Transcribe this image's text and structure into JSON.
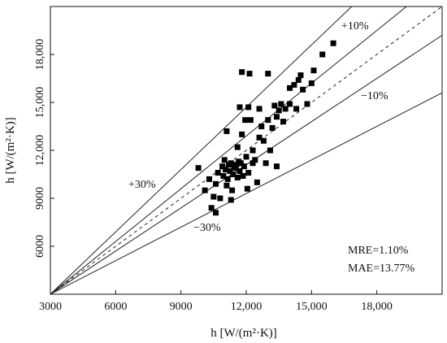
{
  "chart_data": {
    "type": "scatter",
    "xlabel": "h [W/(m²·K)]",
    "ylabel": "h [W/(m²·K)]",
    "xlim": [
      3000,
      21000
    ],
    "ylim": [
      3000,
      21000
    ],
    "x_ticks": [
      3000,
      6000,
      9000,
      12000,
      15000,
      18000
    ],
    "x_tick_labels": [
      "3000",
      "6000",
      "9000",
      "12,000",
      "15,000",
      "18,000"
    ],
    "y_ticks": [
      6000,
      9000,
      12000,
      15000,
      18000
    ],
    "y_tick_labels": [
      "6000",
      "9000",
      "12,000",
      "15,000",
      "18,000"
    ],
    "grid": false,
    "reference_lines": [
      {
        "label": "",
        "slope": 1.0,
        "style": "dashed"
      },
      {
        "label": "+10%",
        "slope": 1.1,
        "style": "solid"
      },
      {
        "label": "−10%",
        "slope": 0.9,
        "style": "solid"
      },
      {
        "label": "+30%",
        "slope": 1.3,
        "style": "solid"
      },
      {
        "label": "−30%",
        "slope": 0.7,
        "style": "solid"
      }
    ],
    "annotations": [
      "MRE=1.10%",
      "MAE=13.77%"
    ],
    "points": [
      [
        9800,
        10900
      ],
      [
        10100,
        9500
      ],
      [
        10300,
        10200
      ],
      [
        10400,
        8400
      ],
      [
        10500,
        9100
      ],
      [
        10600,
        8100
      ],
      [
        10600,
        9900
      ],
      [
        10700,
        10600
      ],
      [
        10800,
        9000
      ],
      [
        10900,
        11000
      ],
      [
        10950,
        10400
      ],
      [
        11000,
        11400
      ],
      [
        11050,
        10800
      ],
      [
        11100,
        9800
      ],
      [
        11100,
        13200
      ],
      [
        11150,
        10200
      ],
      [
        11200,
        11100
      ],
      [
        11250,
        10700
      ],
      [
        11300,
        8900
      ],
      [
        11300,
        11200
      ],
      [
        11350,
        9500
      ],
      [
        11400,
        10500
      ],
      [
        11450,
        11000
      ],
      [
        11500,
        10900
      ],
      [
        11550,
        11100
      ],
      [
        11600,
        10300
      ],
      [
        11600,
        12200
      ],
      [
        11650,
        11300
      ],
      [
        11700,
        10700
      ],
      [
        11700,
        14700
      ],
      [
        11750,
        11200
      ],
      [
        11800,
        13000
      ],
      [
        11800,
        16900
      ],
      [
        11850,
        10400
      ],
      [
        11900,
        11000
      ],
      [
        11950,
        13900
      ],
      [
        12000,
        11600
      ],
      [
        12050,
        9600
      ],
      [
        12100,
        10600
      ],
      [
        12100,
        14700
      ],
      [
        12150,
        16800
      ],
      [
        12200,
        13900
      ],
      [
        12300,
        11200
      ],
      [
        12300,
        12000
      ],
      [
        12400,
        11400
      ],
      [
        12500,
        10000
      ],
      [
        12600,
        12800
      ],
      [
        12600,
        14600
      ],
      [
        12700,
        13500
      ],
      [
        12800,
        12600
      ],
      [
        12900,
        11200
      ],
      [
        13000,
        13900
      ],
      [
        13000,
        16800
      ],
      [
        13100,
        12000
      ],
      [
        13200,
        13400
      ],
      [
        13300,
        14800
      ],
      [
        13400,
        11000
      ],
      [
        13400,
        14100
      ],
      [
        13500,
        14500
      ],
      [
        13600,
        14900
      ],
      [
        13700,
        13800
      ],
      [
        13800,
        14600
      ],
      [
        14000,
        14900
      ],
      [
        14000,
        15900
      ],
      [
        14200,
        16100
      ],
      [
        14300,
        14600
      ],
      [
        14400,
        16400
      ],
      [
        14500,
        16700
      ],
      [
        14600,
        15800
      ],
      [
        14800,
        14900
      ],
      [
        15000,
        16200
      ],
      [
        15100,
        17000
      ],
      [
        15500,
        18000
      ],
      [
        16000,
        18700
      ]
    ]
  }
}
